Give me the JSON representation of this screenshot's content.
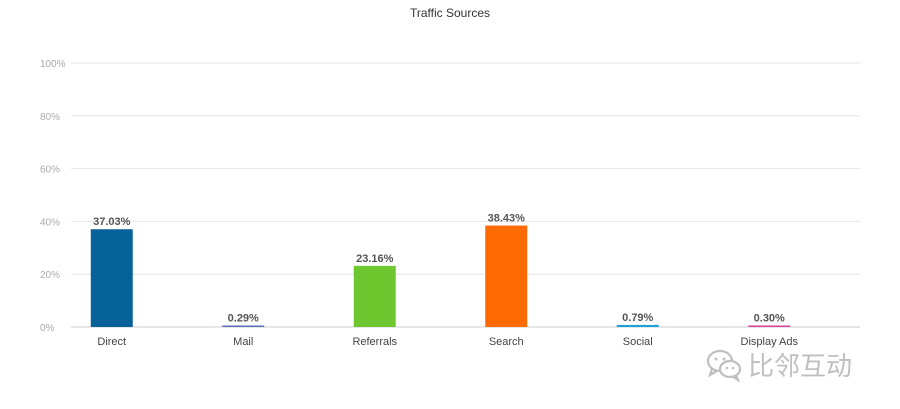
{
  "chart_data": {
    "type": "bar",
    "title": "Traffic Sources",
    "categories": [
      "Direct",
      "Mail",
      "Referrals",
      "Search",
      "Social",
      "Display Ads"
    ],
    "values": [
      37.03,
      0.29,
      23.16,
      38.43,
      0.79,
      0.3
    ],
    "value_labels": [
      "37.03%",
      "0.29%",
      "23.16%",
      "38.43%",
      "0.79%",
      "0.30%"
    ],
    "colors": [
      "#066298",
      "#5b6fb5",
      "#6ec72e",
      "#fd6a02",
      "#1da1d8",
      "#d6409b"
    ],
    "ylim": [
      0,
      100
    ],
    "yticks": [
      0,
      20,
      40,
      60,
      80,
      100
    ],
    "ytick_labels": [
      "0%",
      "20%",
      "40%",
      "60%",
      "80%",
      "100%"
    ],
    "grid": true,
    "legend": "none"
  },
  "watermark": {
    "text": "比邻互动",
    "icon": "wechat-icon"
  }
}
